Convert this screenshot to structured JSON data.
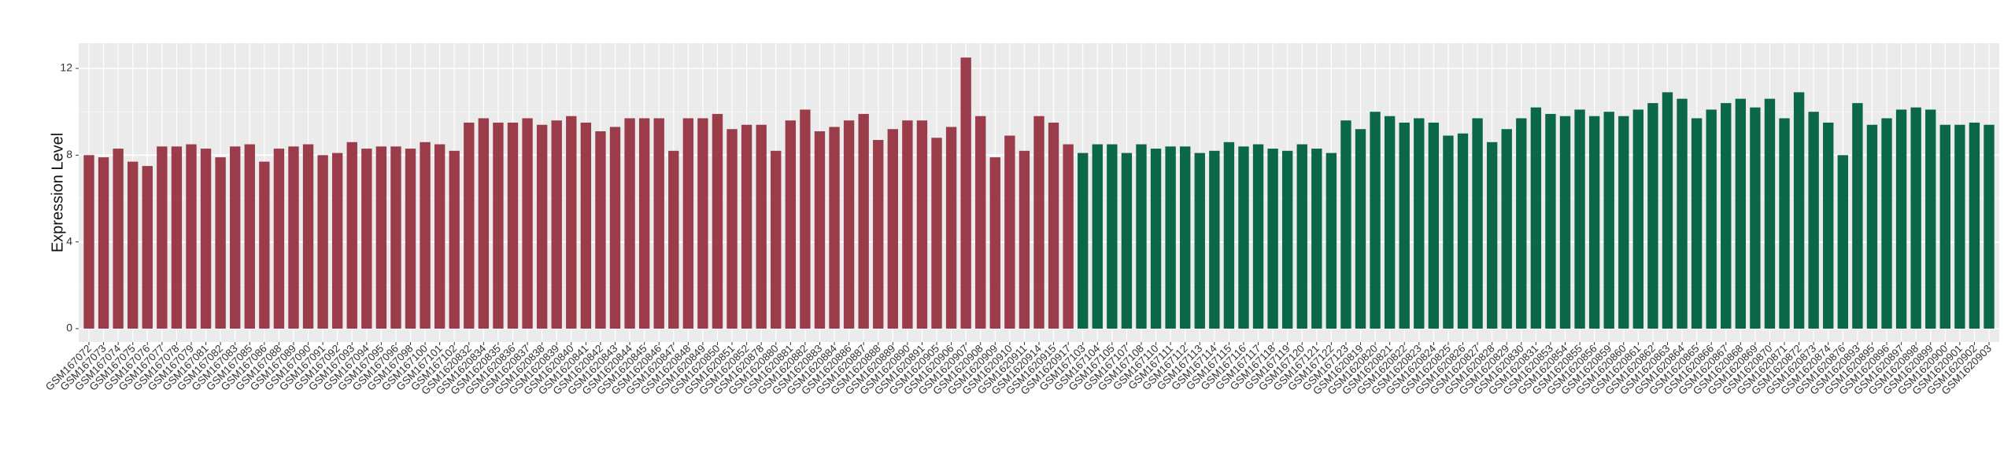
{
  "chart_data": {
    "type": "bar",
    "title": "",
    "xlabel": "",
    "ylabel": "Expression Level",
    "ylim": [
      0,
      13.1
    ],
    "yticks": [
      0,
      4,
      8,
      12
    ],
    "grid": true,
    "legend": "none",
    "colors": {
      "group1": "#9b3c4b",
      "group2": "#0b6847",
      "panel": "#ebebeb",
      "grid": "#ffffff"
    },
    "series": [
      {
        "name": "",
        "color": "#9b3c4b",
        "categories": [
          "GSM167072",
          "GSM167073",
          "GSM167074",
          "GSM167075",
          "GSM167076",
          "GSM167077",
          "GSM167078",
          "GSM167079",
          "GSM167081",
          "GSM167082",
          "GSM167083",
          "GSM167085",
          "GSM167086",
          "GSM167088",
          "GSM167089",
          "GSM167090",
          "GSM167091",
          "GSM167092",
          "GSM167093",
          "GSM167094",
          "GSM167095",
          "GSM167096",
          "GSM167098",
          "GSM167100",
          "GSM167101",
          "GSM167102",
          "GSM1620832",
          "GSM1620834",
          "GSM1620835",
          "GSM1620836",
          "GSM1620837",
          "GSM1620838",
          "GSM1620839",
          "GSM1620840",
          "GSM1620841",
          "GSM1620842",
          "GSM1620843",
          "GSM1620844",
          "GSM1620845",
          "GSM1620846",
          "GSM1620847",
          "GSM1620848",
          "GSM1620849",
          "GSM1620850",
          "GSM1620851",
          "GSM1620852",
          "GSM1620878",
          "GSM1620880",
          "GSM1620881",
          "GSM1620882",
          "GSM1620883",
          "GSM1620884",
          "GSM1620886",
          "GSM1620887",
          "GSM1620888",
          "GSM1620889",
          "GSM1620890",
          "GSM1620891",
          "GSM1620905",
          "GSM1620906",
          "GSM1620907",
          "GSM1620908",
          "GSM1620909",
          "GSM1620910",
          "GSM1620911",
          "GSM1620914",
          "GSM1620915",
          "GSM1620917"
        ],
        "values": [
          8.0,
          7.9,
          8.3,
          7.7,
          7.5,
          8.4,
          8.4,
          8.5,
          8.3,
          7.9,
          8.4,
          8.5,
          7.7,
          8.3,
          8.4,
          8.5,
          8.0,
          8.1,
          8.6,
          8.3,
          8.4,
          8.4,
          8.3,
          8.6,
          8.5,
          8.2,
          9.5,
          9.7,
          9.5,
          9.5,
          9.7,
          9.4,
          9.6,
          9.8,
          9.5,
          9.1,
          9.3,
          9.7,
          9.7,
          9.7,
          8.2,
          9.7,
          9.7,
          9.9,
          9.2,
          9.4,
          9.4,
          8.2,
          9.6,
          10.1,
          9.1,
          9.3,
          9.6,
          9.9,
          8.7,
          9.2,
          9.6,
          9.6,
          8.8,
          9.3,
          12.5,
          9.8,
          7.9,
          8.9,
          8.2,
          9.8,
          9.5,
          8.5
        ]
      },
      {
        "name": "",
        "color": "#0b6847",
        "categories": [
          "GSM167103",
          "GSM167104",
          "GSM167105",
          "GSM167107",
          "GSM167108",
          "GSM167110",
          "GSM167111",
          "GSM167112",
          "GSM167113",
          "GSM167114",
          "GSM167115",
          "GSM167116",
          "GSM167117",
          "GSM167118",
          "GSM167119",
          "GSM167120",
          "GSM167121",
          "GSM167122",
          "GSM167123",
          "GSM1620819",
          "GSM1620820",
          "GSM1620821",
          "GSM1620822",
          "GSM1620823",
          "GSM1620824",
          "GSM1620825",
          "GSM1620826",
          "GSM1620827",
          "GSM1620828",
          "GSM1620829",
          "GSM1620830",
          "GSM1620831",
          "GSM1620853",
          "GSM1620854",
          "GSM1620855",
          "GSM1620856",
          "GSM1620859",
          "GSM1620860",
          "GSM1620861",
          "GSM1620862",
          "GSM1620863",
          "GSM1620864",
          "GSM1620865",
          "GSM1620866",
          "GSM1620867",
          "GSM1620868",
          "GSM1620869",
          "GSM1620870",
          "GSM1620871",
          "GSM1620872",
          "GSM1620873",
          "GSM1620874",
          "GSM1620876",
          "GSM1620893",
          "GSM1620895",
          "GSM1620896",
          "GSM1620897",
          "GSM1620898",
          "GSM1620899",
          "GSM1620900",
          "GSM1620901",
          "GSM1620902",
          "GSM1620903"
        ],
        "values": [
          8.1,
          8.5,
          8.5,
          8.1,
          8.5,
          8.3,
          8.4,
          8.4,
          8.1,
          8.2,
          8.6,
          8.4,
          8.5,
          8.3,
          8.2,
          8.5,
          8.3,
          8.1,
          9.6,
          9.2,
          10.0,
          9.8,
          9.5,
          9.7,
          9.5,
          8.9,
          9.0,
          9.7,
          8.6,
          9.2,
          9.7,
          10.2,
          9.9,
          9.8,
          10.1,
          9.8,
          10.0,
          9.8,
          10.1,
          10.4,
          10.9,
          10.6,
          9.7,
          10.1,
          10.4,
          10.6,
          10.2,
          10.6,
          9.7,
          10.9,
          10.0,
          9.5,
          8.0,
          10.4,
          9.4,
          9.7,
          10.1,
          10.2,
          10.1,
          9.4,
          9.4,
          9.5,
          9.4
        ]
      }
    ]
  }
}
